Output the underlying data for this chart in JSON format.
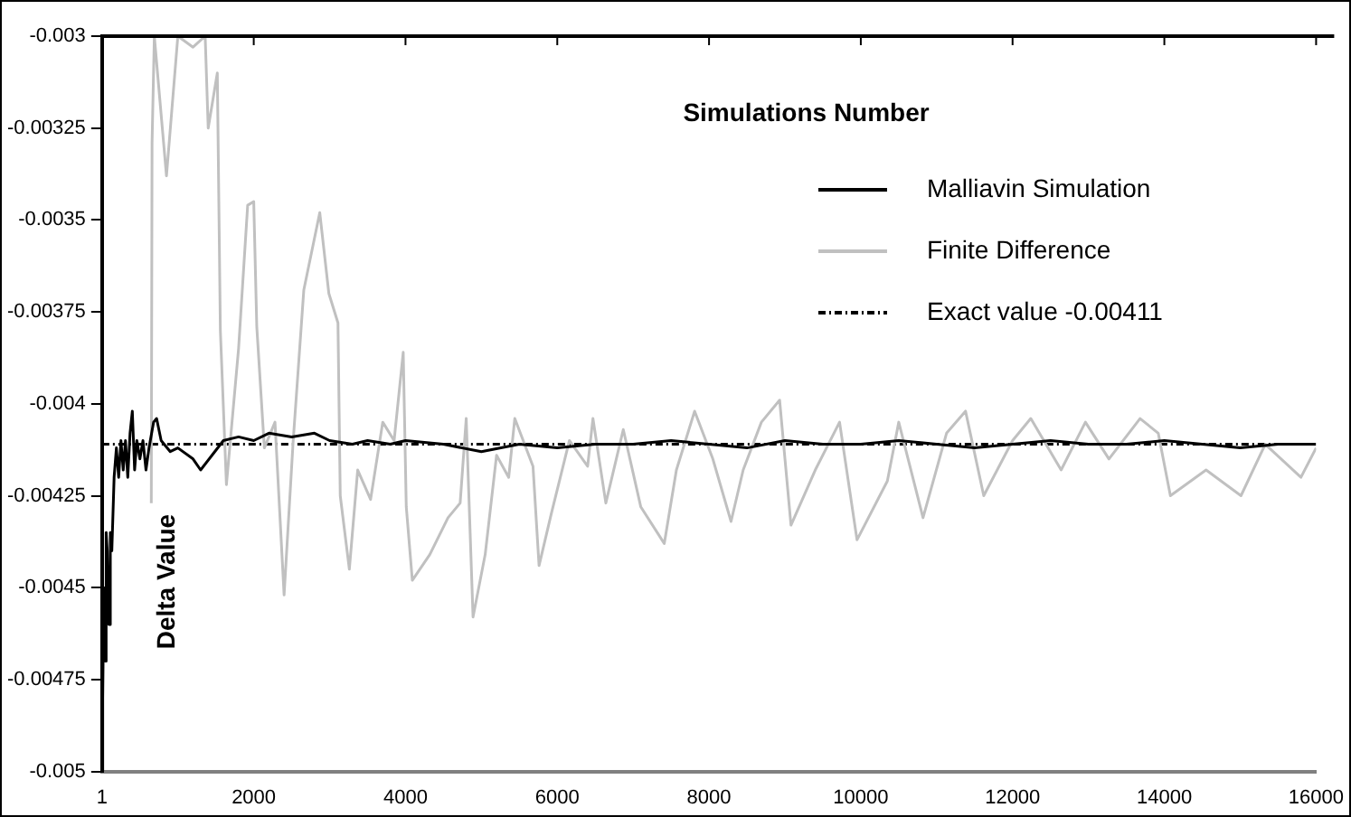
{
  "chart_data": {
    "type": "line",
    "xlabel": "Simulations Number",
    "ylabel": "Delta Value",
    "xlim": [
      1,
      16000
    ],
    "xticks": [
      1,
      2000,
      4000,
      6000,
      8000,
      10000,
      12000,
      14000,
      16000
    ],
    "ylim": [
      -0.005,
      -0.003
    ],
    "yticks": [
      -0.005,
      -0.00475,
      -0.0045,
      -0.00425,
      -0.004,
      -0.00375,
      -0.0035,
      -0.00325,
      -0.003
    ],
    "grid": false,
    "legend": "top right",
    "marker": "none",
    "series": [
      {
        "name": "Malliavin Simulation",
        "color": "#000000",
        "line_style": "solid",
        "x": [
          1,
          10,
          25,
          40,
          55,
          70,
          90,
          110,
          130,
          160,
          190,
          220,
          250,
          280,
          310,
          340,
          370,
          400,
          430,
          460,
          500,
          540,
          580,
          620,
          680,
          720,
          780,
          900,
          1000,
          1200,
          1300,
          1450,
          1600,
          1800,
          2000,
          2200,
          2500,
          2800,
          3000,
          3300,
          3500,
          3800,
          4000,
          4500,
          5000,
          5500,
          6000,
          6500,
          7000,
          7500,
          8000,
          8500,
          9000,
          9500,
          10000,
          10500,
          11000,
          11500,
          12000,
          12500,
          13000,
          13500,
          14000,
          14500,
          15000,
          15500,
          16000
        ],
        "values": [
          -0.005,
          -0.0048,
          -0.0045,
          -0.0047,
          -0.00435,
          -0.0044,
          -0.0046,
          -0.00435,
          -0.0044,
          -0.0042,
          -0.00412,
          -0.0042,
          -0.0041,
          -0.00418,
          -0.0041,
          -0.0042,
          -0.00408,
          -0.00402,
          -0.00418,
          -0.0041,
          -0.00415,
          -0.0041,
          -0.00418,
          -0.00412,
          -0.00405,
          -0.00404,
          -0.0041,
          -0.00413,
          -0.00412,
          -0.00415,
          -0.00418,
          -0.00414,
          -0.0041,
          -0.00409,
          -0.0041,
          -0.00408,
          -0.00409,
          -0.00408,
          -0.0041,
          -0.00411,
          -0.0041,
          -0.00411,
          -0.0041,
          -0.00411,
          -0.00413,
          -0.00411,
          -0.00412,
          -0.00411,
          -0.00411,
          -0.0041,
          -0.00411,
          -0.00412,
          -0.0041,
          -0.00411,
          -0.00411,
          -0.0041,
          -0.00411,
          -0.00412,
          -0.00411,
          -0.0041,
          -0.00411,
          -0.00411,
          -0.0041,
          -0.00411,
          -0.00412,
          -0.00411,
          -0.00411
        ]
      },
      {
        "name": "Finite Difference",
        "color": "#c0c0c0",
        "line_style": "solid",
        "x": [
          650,
          660,
          690,
          850,
          1000,
          1200,
          1360,
          1400,
          1520,
          1560,
          1640,
          1800,
          1920,
          2000,
          2040,
          2140,
          2280,
          2400,
          2520,
          2660,
          2870,
          2990,
          3110,
          3140,
          3260,
          3370,
          3540,
          3700,
          3850,
          3970,
          4010,
          4090,
          4320,
          4560,
          4720,
          4800,
          4890,
          5050,
          5200,
          5360,
          5440,
          5680,
          5760,
          5920,
          6160,
          6400,
          6470,
          6640,
          6870,
          7100,
          7410,
          7570,
          7810,
          8050,
          8290,
          8450,
          8690,
          8930,
          9080,
          9400,
          9720,
          9950,
          10350,
          10500,
          10820,
          11130,
          11380,
          11620,
          12000,
          12240,
          12640,
          12960,
          13270,
          13680,
          13920,
          14080,
          14550,
          15010,
          15330,
          15800,
          16000
        ],
        "values": [
          -0.00427,
          -0.00329,
          -0.003,
          -0.00338,
          -0.003,
          -0.00303,
          -0.003,
          -0.00325,
          -0.0031,
          -0.0038,
          -0.00422,
          -0.00385,
          -0.00346,
          -0.00345,
          -0.00379,
          -0.00412,
          -0.00405,
          -0.00452,
          -0.0041,
          -0.00369,
          -0.00348,
          -0.0037,
          -0.00378,
          -0.00425,
          -0.00445,
          -0.00418,
          -0.00426,
          -0.00405,
          -0.0041,
          -0.00386,
          -0.00428,
          -0.00448,
          -0.00441,
          -0.00431,
          -0.00427,
          -0.00404,
          -0.00458,
          -0.00441,
          -0.00414,
          -0.0042,
          -0.00404,
          -0.00417,
          -0.00444,
          -0.0043,
          -0.0041,
          -0.00417,
          -0.00404,
          -0.00427,
          -0.00407,
          -0.00428,
          -0.00438,
          -0.00418,
          -0.00402,
          -0.00415,
          -0.00432,
          -0.00418,
          -0.00405,
          -0.00399,
          -0.00433,
          -0.00418,
          -0.00405,
          -0.00437,
          -0.00421,
          -0.00405,
          -0.00431,
          -0.00408,
          -0.00402,
          -0.00425,
          -0.0041,
          -0.00404,
          -0.00418,
          -0.00405,
          -0.00415,
          -0.00404,
          -0.00408,
          -0.00425,
          -0.00418,
          -0.00425,
          -0.00411,
          -0.0042,
          -0.00412
        ]
      },
      {
        "name": "Exact value -0.00411",
        "color": "#000000",
        "line_style": "dashed",
        "x": [
          1,
          16000
        ],
        "values": [
          -0.00411,
          -0.00411
        ]
      }
    ]
  }
}
